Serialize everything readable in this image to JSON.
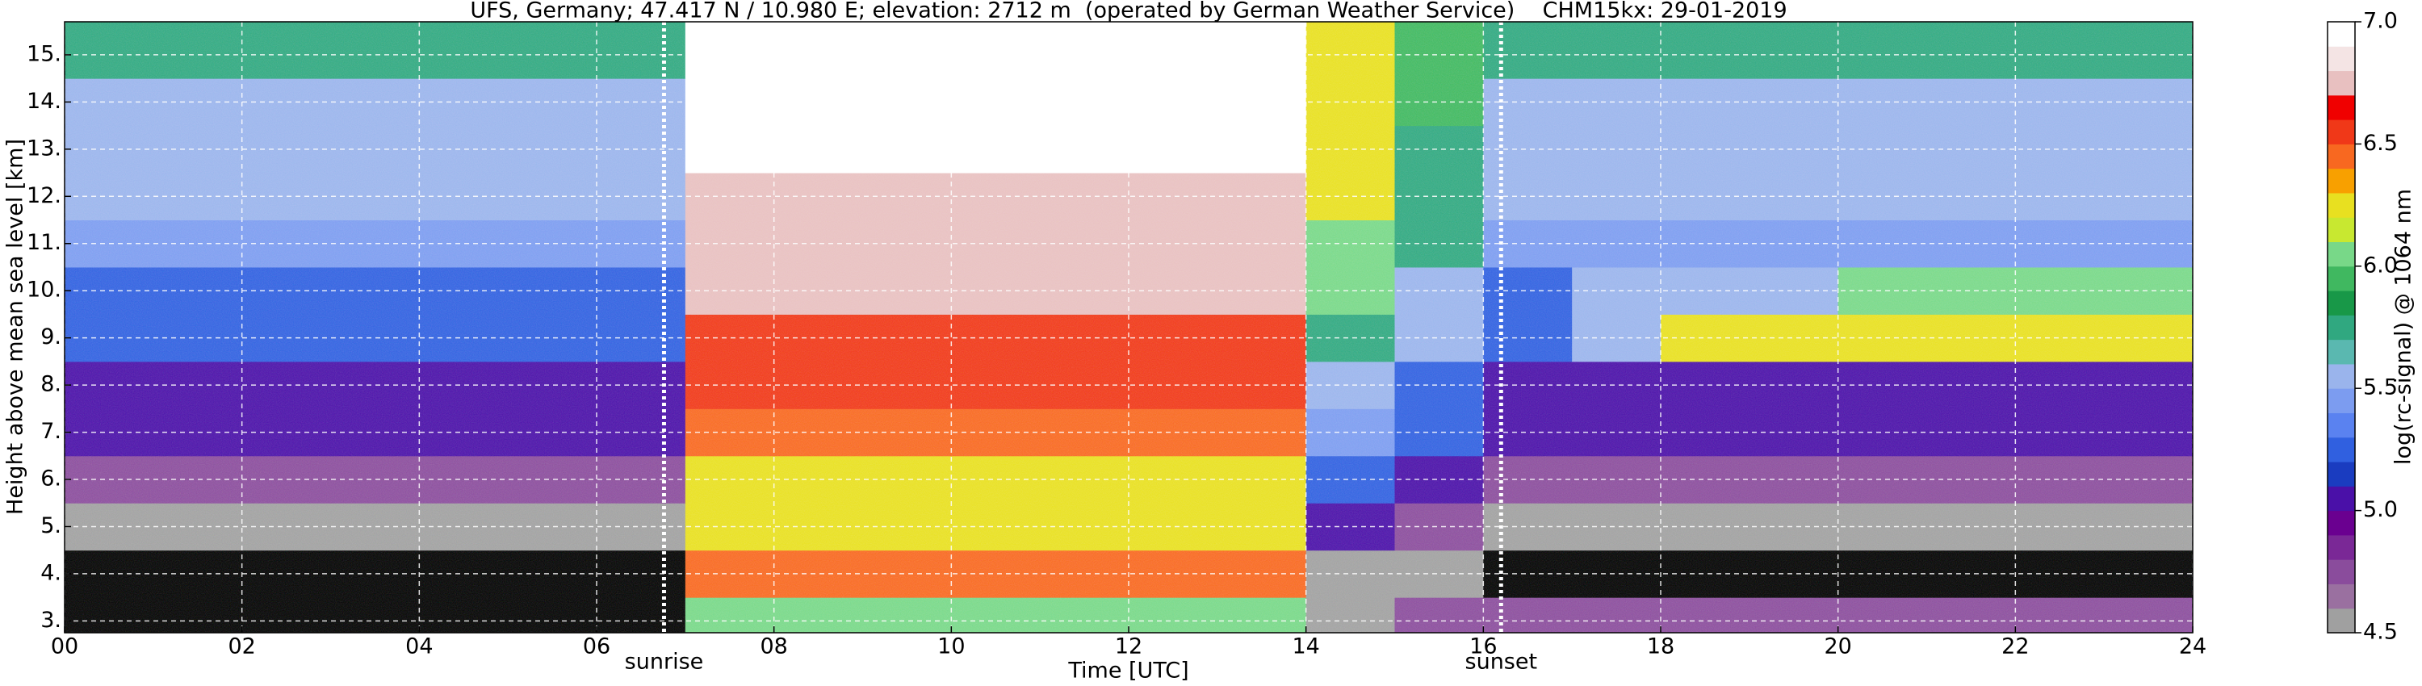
{
  "chart_data": {
    "type": "heatmap",
    "title": "UFS, Germany; 47.417 N / 10.980 E; elevation: 2712 m  (operated by German Weather Service)    CHM15kx: 29-01-2019",
    "xlabel": "Time [UTC]",
    "ylabel": "Height above mean sea level [km]",
    "xlim": [
      0,
      24
    ],
    "xticks": [
      {
        "value": 0,
        "label": "00"
      },
      {
        "value": 2,
        "label": "02"
      },
      {
        "value": 4,
        "label": "04"
      },
      {
        "value": 6,
        "label": "06"
      },
      {
        "value": 8,
        "label": "08"
      },
      10,
      12,
      14,
      16,
      18,
      20,
      22,
      24
    ],
    "ylim": [
      2.75,
      15.7
    ],
    "yticks": [
      {
        "value": 3,
        "label": "3."
      },
      {
        "value": 4,
        "label": "4."
      },
      {
        "value": 5,
        "label": "5."
      },
      {
        "value": 6,
        "label": "6."
      },
      {
        "value": 7,
        "label": "7."
      },
      {
        "value": 8,
        "label": "8."
      },
      {
        "value": 9,
        "label": "9."
      },
      {
        "value": 10,
        "label": "10."
      },
      {
        "value": 11,
        "label": "11."
      },
      {
        "value": 12,
        "label": "12."
      },
      {
        "value": 13,
        "label": "13."
      },
      {
        "value": 14,
        "label": "14."
      },
      {
        "value": 15,
        "label": "15."
      }
    ],
    "grid": true,
    "x_edges": [
      0,
      1,
      2,
      3,
      4,
      5,
      6,
      7,
      8,
      9,
      10,
      11,
      12,
      13,
      14,
      15,
      16,
      17,
      18,
      19,
      20,
      21,
      22,
      23,
      24
    ],
    "y_edges": [
      2.75,
      3.5,
      4.5,
      5.5,
      6.5,
      7.5,
      8.5,
      9.5,
      10.5,
      11.5,
      12.5,
      13.5,
      14.5,
      15.7
    ],
    "z": [
      [
        4.4,
        4.4,
        4.4,
        4.4,
        4.4,
        4.4,
        4.4,
        6.0,
        6.0,
        6.0,
        6.0,
        6.0,
        6.0,
        6.0,
        4.6,
        4.7,
        4.7,
        4.7,
        4.7,
        4.7,
        4.7,
        4.7,
        4.7,
        4.7
      ],
      [
        4.4,
        4.4,
        4.4,
        4.4,
        4.4,
        4.4,
        4.4,
        6.4,
        6.4,
        6.4,
        6.4,
        6.4,
        6.4,
        6.4,
        4.6,
        4.5,
        4.4,
        4.4,
        4.4,
        4.4,
        4.4,
        4.4,
        4.4,
        4.4
      ],
      [
        4.6,
        4.6,
        4.6,
        4.6,
        4.6,
        4.6,
        4.6,
        6.2,
        6.2,
        6.2,
        6.2,
        6.2,
        6.2,
        6.2,
        5.0,
        4.8,
        4.6,
        4.6,
        4.6,
        4.6,
        4.6,
        4.6,
        4.6,
        4.6
      ],
      [
        4.8,
        4.8,
        4.8,
        4.8,
        4.8,
        4.8,
        4.8,
        6.3,
        6.3,
        6.3,
        6.3,
        6.3,
        6.3,
        6.3,
        5.2,
        5.0,
        4.8,
        4.8,
        4.8,
        4.8,
        4.8,
        4.8,
        4.8,
        4.8
      ],
      [
        5.0,
        5.0,
        5.0,
        5.0,
        5.0,
        5.0,
        5.0,
        6.4,
        6.4,
        6.4,
        6.4,
        6.4,
        6.4,
        6.4,
        5.4,
        5.2,
        5.0,
        5.0,
        5.0,
        5.0,
        5.0,
        5.0,
        5.0,
        5.0
      ],
      [
        5.1,
        5.1,
        5.1,
        5.1,
        5.1,
        5.1,
        5.1,
        6.5,
        6.5,
        6.5,
        6.5,
        6.5,
        6.5,
        6.5,
        5.6,
        5.3,
        5.1,
        5.1,
        5.1,
        5.1,
        5.1,
        5.1,
        5.1,
        5.1
      ],
      [
        5.2,
        5.2,
        5.2,
        5.2,
        5.2,
        5.2,
        5.2,
        6.6,
        6.6,
        6.6,
        6.6,
        6.6,
        6.6,
        6.6,
        5.8,
        5.5,
        5.2,
        5.6,
        6.2,
        6.2,
        6.2,
        6.2,
        6.2,
        6.2
      ],
      [
        5.3,
        5.3,
        5.3,
        5.3,
        5.3,
        5.3,
        5.3,
        6.7,
        6.7,
        6.7,
        6.7,
        6.7,
        6.7,
        6.7,
        6.0,
        5.6,
        5.3,
        5.5,
        5.5,
        5.5,
        6.0,
        6.0,
        6.0,
        6.0
      ],
      [
        5.4,
        5.4,
        5.4,
        5.4,
        5.4,
        5.4,
        5.4,
        6.8,
        6.8,
        6.8,
        6.8,
        6.8,
        6.8,
        6.8,
        6.1,
        5.7,
        5.4,
        5.4,
        5.4,
        5.4,
        5.4,
        5.4,
        5.4,
        5.4
      ],
      [
        5.5,
        5.5,
        5.5,
        5.5,
        5.5,
        5.5,
        5.5,
        6.8,
        6.8,
        6.8,
        6.8,
        6.8,
        6.8,
        6.8,
        6.2,
        5.8,
        5.5,
        5.5,
        5.5,
        5.5,
        5.5,
        5.5,
        5.5,
        5.5
      ],
      [
        5.6,
        5.6,
        5.6,
        5.6,
        5.6,
        5.6,
        5.6,
        6.9,
        6.9,
        6.9,
        6.9,
        6.9,
        6.9,
        6.9,
        6.2,
        5.8,
        5.6,
        5.6,
        5.6,
        5.6,
        5.6,
        5.6,
        5.6,
        5.6
      ],
      [
        5.6,
        5.6,
        5.6,
        5.6,
        5.6,
        5.6,
        5.6,
        6.9,
        6.9,
        6.9,
        6.9,
        6.9,
        6.9,
        6.9,
        6.2,
        5.9,
        5.6,
        5.6,
        5.6,
        5.6,
        5.6,
        5.6,
        5.6,
        5.6
      ],
      [
        5.7,
        5.7,
        5.7,
        5.7,
        5.7,
        5.7,
        5.7,
        6.9,
        6.9,
        6.9,
        6.9,
        6.9,
        6.9,
        6.9,
        6.2,
        5.9,
        5.7,
        5.7,
        5.7,
        5.7,
        5.7,
        5.7,
        5.7,
        5.7
      ]
    ],
    "under_color": "#000000",
    "colorbar": {
      "label": "log(rc-signal) @ 1064 nm",
      "lim": [
        4.5,
        7.0
      ],
      "ticks": [
        4.5,
        {
          "value": 5.0,
          "label": "5.0"
        },
        5.5,
        {
          "value": 6.0,
          "label": "6.0"
        },
        6.5,
        {
          "value": 7.0,
          "label": "7.0"
        }
      ],
      "colors": [
        "#a0a0a0",
        "#9a70a0",
        "#8a4c9c",
        "#7a2896",
        "#6a0090",
        "#4a10a8",
        "#1a3cc0",
        "#3060e0",
        "#5a82f0",
        "#7c9cf0",
        "#9ab4ec",
        "#5ab8b0",
        "#30a880",
        "#189848",
        "#40b860",
        "#78d888",
        "#c8e830",
        "#e8e020",
        "#f8a000",
        "#f86820",
        "#f03818",
        "#f00000",
        "#e8c0c0",
        "#f4e4e4",
        "#ffffff"
      ]
    },
    "annotations": [
      {
        "text": "sunrise",
        "x": 6.76
      },
      {
        "text": "sunset",
        "x": 16.2
      }
    ]
  }
}
